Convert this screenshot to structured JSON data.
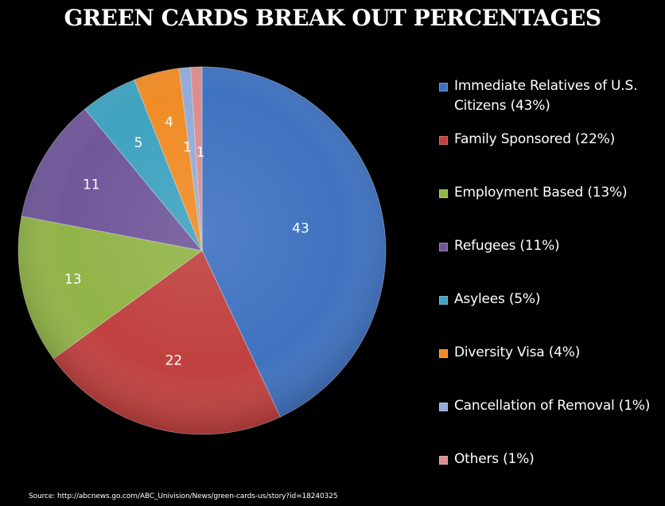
{
  "chart_data": {
    "type": "pie",
    "title": "GREEN CARDS BREAK OUT PERCENTAGES",
    "slices": [
      {
        "name": "Immediate Relatives of U.S. Citizens (43%)",
        "value": 43,
        "label": "43",
        "color": "#3f72c0"
      },
      {
        "name": "Family Sponsored (22%)",
        "value": 22,
        "label": "22",
        "color": "#c0413f"
      },
      {
        "name": "Employment Based (13%)",
        "value": 13,
        "label": "13",
        "color": "#91b448"
      },
      {
        "name": "Refugees (11%)",
        "value": 11,
        "label": "11",
        "color": "#70579a"
      },
      {
        "name": "Asylees (5%)",
        "value": 5,
        "label": "5",
        "color": "#3fa3c0"
      },
      {
        "name": "Diversity Visa (4%)",
        "value": 4,
        "label": "4",
        "color": "#f08c26"
      },
      {
        "name": "Cancellation of Removal (1%)",
        "value": 1,
        "label": "1",
        "color": "#93acd8"
      },
      {
        "name": "Others (1%)",
        "value": 1,
        "label": "1",
        "color": "#dc8d8d"
      }
    ],
    "start_angle": "12 o'clock",
    "direction": "clockwise",
    "legend_position": "right"
  },
  "source": "Source: http://abcnews.go.com/ABC_Univision/News/green-cards-us/story?id=18240325"
}
